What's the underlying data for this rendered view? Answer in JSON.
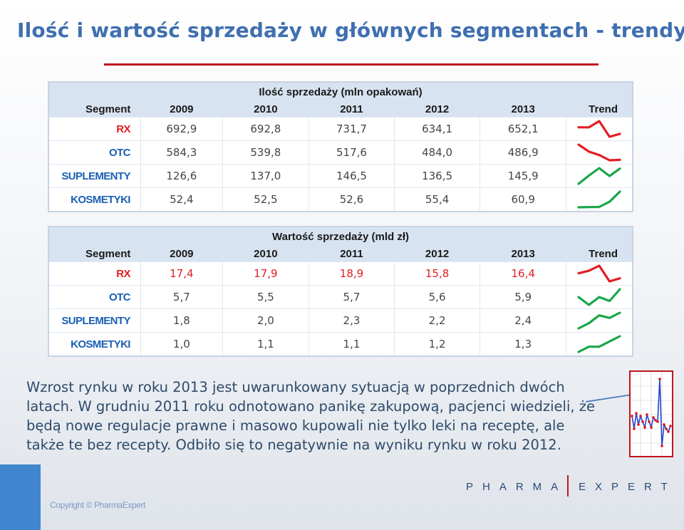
{
  "title": "Ilość i wartość sprzedaży w głównych segmentach - trendy",
  "colors": {
    "title_blue": "#3f6fb0",
    "accent_red": "#c0161c",
    "trend_red": "#e31d23",
    "trend_green": "#1aa64a",
    "header_bg": "#d8e3f1",
    "segment_rx": "#e31d23",
    "segment_other": "#1a5fb4"
  },
  "header_labels": {
    "segment": "Segment",
    "trend": "Trend",
    "years": [
      "2009",
      "2010",
      "2011",
      "2012",
      "2013"
    ]
  },
  "tables": {
    "quantity": {
      "caption": "Ilość sprzedaży (mln opakowań)",
      "rows": [
        {
          "segment": "RX",
          "values": [
            "692,9",
            "692,8",
            "731,7",
            "634,1",
            "652,1"
          ]
        },
        {
          "segment": "OTC",
          "values": [
            "584,3",
            "539,8",
            "517,6",
            "484,0",
            "486,9"
          ]
        },
        {
          "segment": "SUPLEMENTY",
          "values": [
            "126,6",
            "137,0",
            "146,5",
            "136,5",
            "145,9"
          ]
        },
        {
          "segment": "KOSMETYKI",
          "values": [
            "52,4",
            "52,5",
            "52,6",
            "55,4",
            "60,9"
          ]
        }
      ]
    },
    "value": {
      "caption": "Wartość sprzedaży (mld zł)",
      "rows": [
        {
          "segment": "RX",
          "values": [
            "17,4",
            "17,9",
            "18,9",
            "15,8",
            "16,4"
          ]
        },
        {
          "segment": "OTC",
          "values": [
            "5,7",
            "5,5",
            "5,7",
            "5,6",
            "5,9"
          ]
        },
        {
          "segment": "SUPLEMENTY",
          "values": [
            "1,8",
            "2,0",
            "2,3",
            "2,2",
            "2,4"
          ]
        },
        {
          "segment": "KOSMETYKI",
          "values": [
            "1,0",
            "1,1",
            "1,1",
            "1,2",
            "1,3"
          ]
        }
      ]
    }
  },
  "notes": "Wzrost rynku w roku 2013 jest uwarunkowany sytuacją w poprzednich dwóch latach. W grudniu 2011 roku odnotowano panikę zakupową, pacjenci wiedzieli, że będą nowe regulacje prawne i masowo kupowali nie tylko leki na receptę, ale także te bez recepty. Odbiło się to negatywnie na wyniku rynku w roku 2012.",
  "footer": {
    "copyright": "Copyright © PharmaExpert",
    "logo_left": "PHARMA",
    "logo_right": "EXPERT"
  }
}
